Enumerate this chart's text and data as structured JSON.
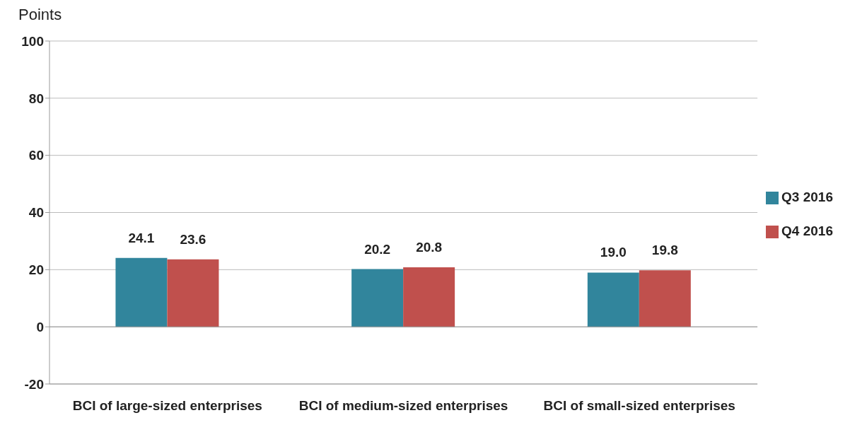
{
  "chart_data": {
    "type": "bar",
    "ylabel": "Points",
    "categories": [
      "BCI of large-sized enterprises",
      "BCI of medium-sized enterprises",
      "BCI of small-sized enterprises"
    ],
    "series": [
      {
        "name": "Q3 2016",
        "color": "#31859c",
        "values": [
          24.1,
          20.2,
          19.0
        ],
        "value_labels": [
          "24.1",
          "20.2",
          "19.0"
        ]
      },
      {
        "name": "Q4 2016",
        "color": "#c0504d",
        "values": [
          23.6,
          20.8,
          19.8
        ],
        "value_labels": [
          "23.6",
          "20.8",
          "19.8"
        ]
      }
    ],
    "ylim": [
      -20,
      100
    ],
    "yticks": [
      -20,
      0,
      20,
      40,
      60,
      80,
      100
    ],
    "grid": "y",
    "legend": "right"
  }
}
